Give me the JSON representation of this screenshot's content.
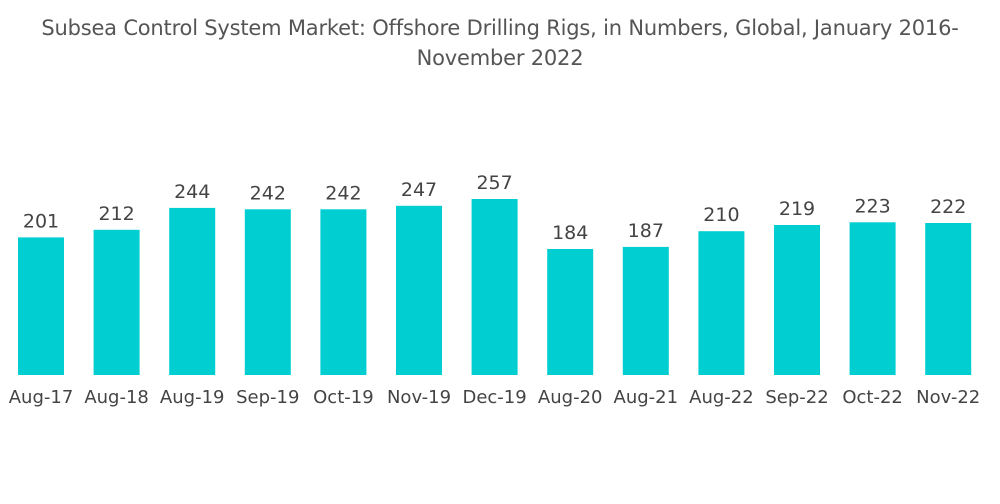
{
  "chart_data": {
    "type": "bar",
    "title_line1": "Subsea Control System Market: Offshore Drilling Rigs, in Numbers, Global, January 2016-",
    "title_line2": "November 2022",
    "xlabel": "",
    "ylabel": "",
    "categories": [
      "Aug-17",
      "Aug-18",
      "Aug-19",
      "Sep-19",
      "Oct-19",
      "Nov-19",
      "Dec-19",
      "Aug-20",
      "Aug-21",
      "Aug-22",
      "Sep-22",
      "Oct-22",
      "Nov-22"
    ],
    "values": [
      201,
      212,
      244,
      242,
      242,
      247,
      257,
      184,
      187,
      210,
      219,
      223,
      222
    ],
    "data_labels": [
      "201",
      "212",
      "244",
      "242",
      "242",
      "247",
      "257",
      "184",
      "187",
      "210",
      "219",
      "223",
      "222"
    ],
    "ylim": [
      0,
      257
    ],
    "grid": false,
    "legend": "none",
    "bar_color": "#00CED1"
  }
}
